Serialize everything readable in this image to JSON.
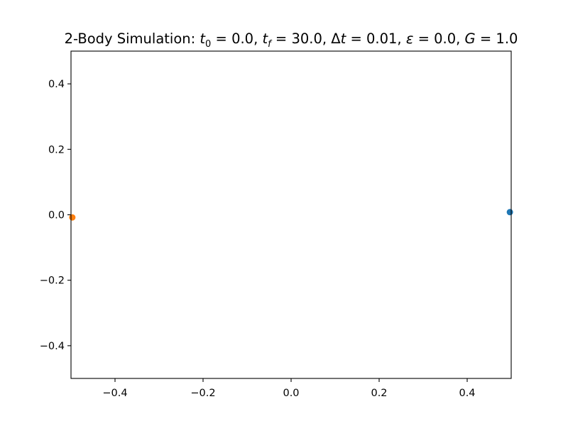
{
  "chart_data": {
    "type": "scatter",
    "title": {
      "prefix": "2-Body Simulation: ",
      "t0_symbol": "t",
      "t0_sub": "0",
      "t0_value": " = 0.0, ",
      "tf_symbol": "t",
      "tf_sub": "f",
      "tf_value": " = 30.0, ",
      "dt_delta": "Δ",
      "dt_symbol": "t",
      "dt_value": " = 0.01, ",
      "eps_symbol": "ε",
      "eps_value": " = 0.0, ",
      "g_symbol": "G",
      "g_value": " = 1.0"
    },
    "xlabel": "",
    "ylabel": "",
    "xlim": [
      -0.5,
      0.5
    ],
    "ylim": [
      -0.5,
      0.5
    ],
    "xticks": [
      -0.4,
      -0.2,
      0.0,
      0.2,
      0.4
    ],
    "xtick_labels": [
      "−0.4",
      "−0.2",
      "0.0",
      "0.2",
      "0.4"
    ],
    "yticks": [
      -0.4,
      -0.2,
      0.0,
      0.2,
      0.4
    ],
    "ytick_labels": [
      "−0.4",
      "−0.2",
      "0.0",
      "0.2",
      "0.4"
    ],
    "grid": false,
    "legend": "none",
    "series": [
      {
        "x": [
          0.497
        ],
        "y": [
          0.008
        ],
        "color": "#1f77b4"
      },
      {
        "x": [
          -0.497
        ],
        "y": [
          -0.008
        ],
        "color": "#ff7f0e"
      }
    ]
  }
}
